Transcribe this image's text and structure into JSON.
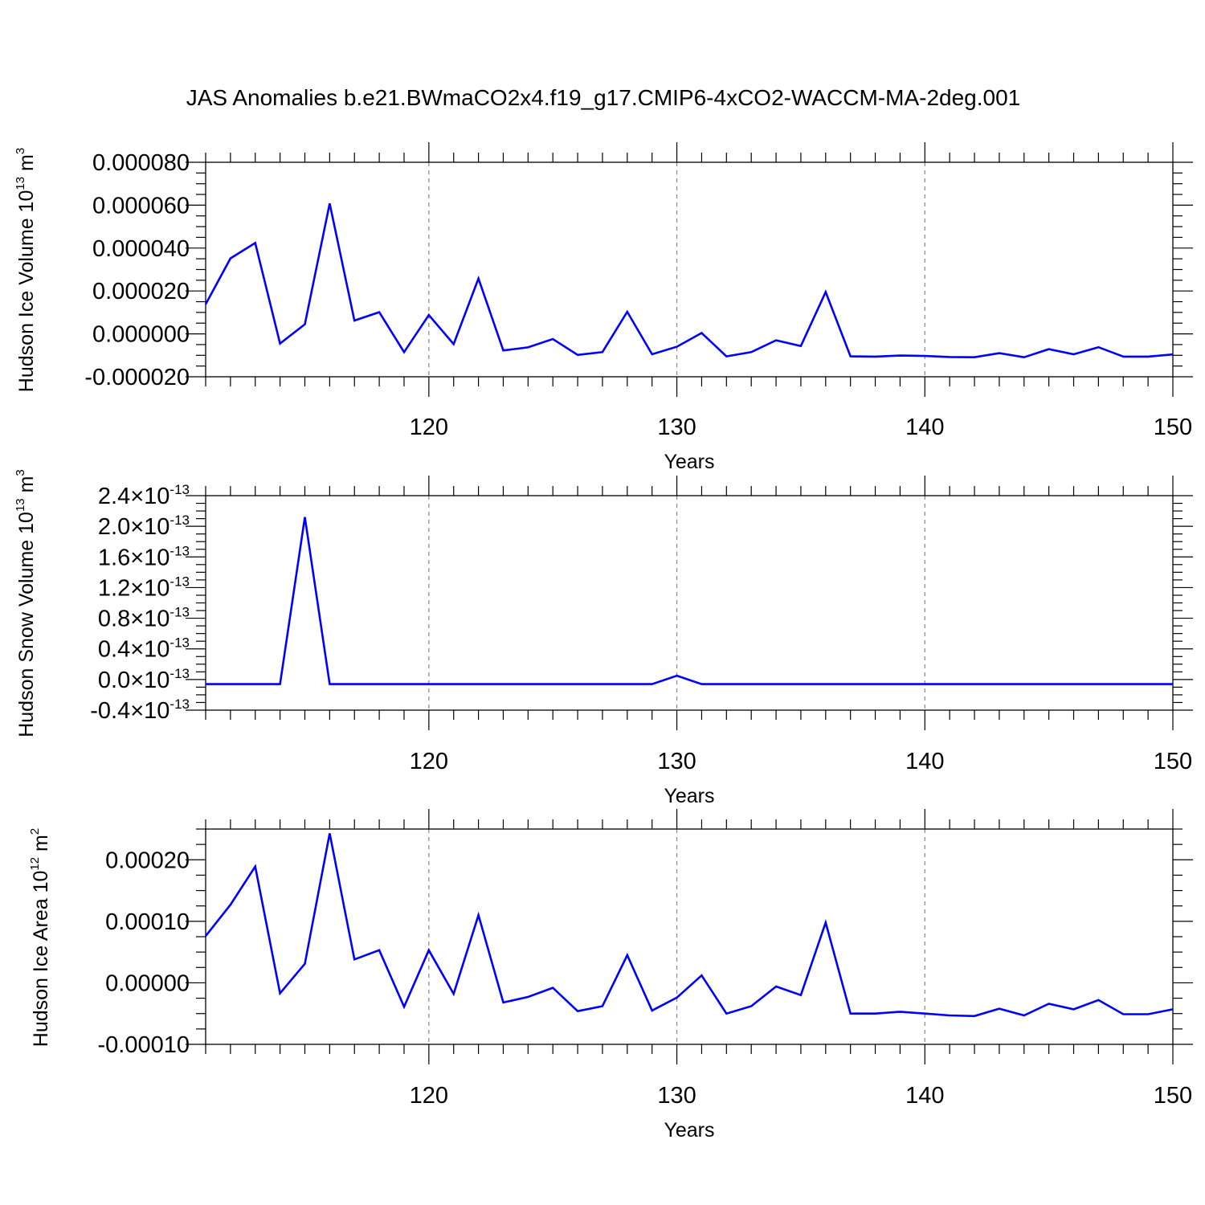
{
  "title": "JAS Anomalies b.e21.BWmaCO2x4.f19_g17.CMIP6-4xCO2-WACCM-MA-2deg.001",
  "colors": {
    "series": "#0000ff",
    "axes": "#000000",
    "grid": "#888888"
  },
  "chart_data": [
    {
      "type": "line",
      "ylabel_main": "Hudson Ice Volume 10",
      "ylabel_exp": "13",
      "ylabel_unit": " m",
      "ylabel_unit_exp": "3",
      "xlabel": "Years",
      "xlim": [
        111,
        150
      ],
      "ylim": [
        -2e-05,
        8e-05
      ],
      "xticks": [
        120,
        130,
        140,
        150
      ],
      "xtick_labels": [
        "120",
        "130",
        "140",
        "150"
      ],
      "yticks": [
        -2e-05,
        0.0,
        2e-05,
        4e-05,
        6e-05,
        8e-05
      ],
      "ytick_labels": [
        "-0.000020",
        "0.000000",
        "0.000020",
        "0.000040",
        "0.000060",
        "0.000080"
      ],
      "grid": "vertical dashed at major x ticks",
      "x": [
        111,
        112,
        113,
        114,
        115,
        116,
        117,
        118,
        119,
        120,
        121,
        122,
        123,
        124,
        125,
        126,
        127,
        128,
        129,
        130,
        131,
        132,
        133,
        134,
        135,
        136,
        137,
        138,
        139,
        140,
        141,
        142,
        143,
        144,
        145,
        146,
        147,
        148,
        149,
        150
      ],
      "values": [
        1.38e-05,
        3.52e-05,
        4.24e-05,
        -4.5e-06,
        4.5e-06,
        6.08e-05,
        6.2e-06,
        1.01e-05,
        -8.5e-06,
        8.8e-06,
        -4.8e-06,
        2.58e-05,
        -7.7e-06,
        -6.3e-06,
        -2.4e-06,
        -9.8e-06,
        -8.5e-06,
        1.03e-05,
        -9.5e-06,
        -6e-06,
        4e-07,
        -1.05e-05,
        -8.5e-06,
        -3e-06,
        -5.7e-06,
        1.95e-05,
        -1.05e-05,
        -1.06e-05,
        -1.01e-05,
        -1.03e-05,
        -1.08e-05,
        -1.09e-05,
        -9e-06,
        -1.09e-05,
        -7.1e-06,
        -9.5e-06,
        -6.2e-06,
        -1.06e-05,
        -1.06e-05,
        -9.6e-06
      ]
    },
    {
      "type": "line",
      "ylabel_main": "Hudson Snow Volume 10",
      "ylabel_exp": "13",
      "ylabel_unit": " m",
      "ylabel_unit_exp": "3",
      "xlabel": "Years",
      "xlim": [
        111,
        150
      ],
      "ylim": [
        -4e-14,
        2.4e-13
      ],
      "xticks": [
        120,
        130,
        140,
        150
      ],
      "xtick_labels": [
        "120",
        "130",
        "140",
        "150"
      ],
      "yticks": [
        -4e-14,
        0.0,
        4e-14,
        8e-14,
        1.2e-13,
        1.6e-13,
        2e-13,
        2.4e-13
      ],
      "ytick_mantissas": [
        "-0.4",
        "0.0",
        "0.4",
        "0.8",
        "1.2",
        "1.6",
        "2.0",
        "2.4"
      ],
      "ytick_base": "10",
      "ytick_times": "×",
      "ytick_exp": "-13",
      "grid": "vertical dashed at major x ticks",
      "x": [
        111,
        112,
        113,
        114,
        115,
        116,
        117,
        118,
        119,
        120,
        121,
        122,
        123,
        124,
        125,
        126,
        127,
        128,
        129,
        130,
        131,
        132,
        133,
        134,
        135,
        136,
        137,
        138,
        139,
        140,
        141,
        142,
        143,
        144,
        145,
        146,
        147,
        148,
        149,
        150
      ],
      "values": [
        -6e-15,
        -6e-15,
        -6e-15,
        -6e-15,
        2.12e-13,
        -6e-15,
        -6e-15,
        -6e-15,
        -6e-15,
        -6e-15,
        -6e-15,
        -6e-15,
        -6e-15,
        -6e-15,
        -6e-15,
        -6e-15,
        -6e-15,
        -6e-15,
        -6e-15,
        5e-15,
        -6e-15,
        -6e-15,
        -6e-15,
        -6e-15,
        -6e-15,
        -6e-15,
        -6e-15,
        -6e-15,
        -6e-15,
        -6e-15,
        -6e-15,
        -6e-15,
        -6e-15,
        -6e-15,
        -6e-15,
        -6e-15,
        -6e-15,
        -6e-15,
        -6e-15,
        -6e-15
      ]
    },
    {
      "type": "line",
      "ylabel_main": "Hudson Ice Area 10",
      "ylabel_exp": "12",
      "ylabel_unit": " m",
      "ylabel_unit_exp": "2",
      "xlabel": "Years",
      "xlim": [
        111,
        150
      ],
      "ylim": [
        -0.0001,
        0.00025
      ],
      "xticks": [
        120,
        130,
        140,
        150
      ],
      "xtick_labels": [
        "120",
        "130",
        "140",
        "150"
      ],
      "yticks": [
        -0.0001,
        0.0,
        0.0001,
        0.0002
      ],
      "ytick_labels": [
        "-0.00010",
        "0.00000",
        "0.00010",
        "0.00020"
      ],
      "grid": "vertical dashed at major x ticks",
      "x": [
        111,
        112,
        113,
        114,
        115,
        116,
        117,
        118,
        119,
        120,
        121,
        122,
        123,
        124,
        125,
        126,
        127,
        128,
        129,
        130,
        131,
        132,
        133,
        134,
        135,
        136,
        137,
        138,
        139,
        140,
        141,
        142,
        143,
        144,
        145,
        146,
        147,
        148,
        149,
        150
      ],
      "values": [
        7.6e-05,
        0.000127,
        0.000189,
        -1.7e-05,
        3.1e-05,
        0.000243,
        3.8e-05,
        5.3e-05,
        -3.9e-05,
        5.3e-05,
        -1.8e-05,
        0.00011,
        -3.2e-05,
        -2.3e-05,
        -8e-06,
        -4.6e-05,
        -3.8e-05,
        4.5e-05,
        -4.5e-05,
        -2.4e-05,
        1.2e-05,
        -5e-05,
        -3.8e-05,
        -6e-06,
        -2e-05,
        9.8e-05,
        -5e-05,
        -5e-05,
        -4.7e-05,
        -5e-05,
        -5.3e-05,
        -5.4e-05,
        -4.2e-05,
        -5.3e-05,
        -3.4e-05,
        -4.3e-05,
        -2.8e-05,
        -5.1e-05,
        -5.1e-05,
        -4.3e-05
      ]
    }
  ]
}
